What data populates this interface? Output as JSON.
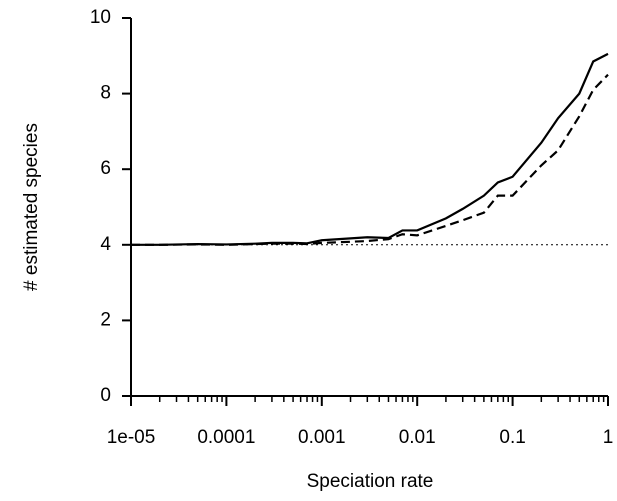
{
  "chart_data": {
    "type": "line",
    "x_label": "Speciation rate",
    "y_label": "# estimated species",
    "x_scale": "log",
    "x": [
      1e-05,
      2e-05,
      5e-05,
      0.0001,
      0.0002,
      0.0003,
      0.0005,
      0.0007,
      0.001,
      0.002,
      0.003,
      0.005,
      0.007,
      0.01,
      0.02,
      0.03,
      0.05,
      0.07,
      0.1,
      0.2,
      0.3,
      0.5,
      0.7,
      1
    ],
    "series": [
      {
        "color": "#000000",
        "dash": "solid",
        "values": [
          4.0,
          4.0,
          4.02,
          4.01,
          4.03,
          4.05,
          4.05,
          4.04,
          4.12,
          4.17,
          4.2,
          4.18,
          4.38,
          4.38,
          4.7,
          4.95,
          5.3,
          5.65,
          5.8,
          6.7,
          7.35,
          8.0,
          8.85,
          9.05
        ]
      },
      {
        "color": "#000000",
        "dash": "dashed",
        "values": [
          4.0,
          4.0,
          4.01,
          4.0,
          4.02,
          4.03,
          4.03,
          4.02,
          4.05,
          4.08,
          4.1,
          4.15,
          4.28,
          4.25,
          4.5,
          4.65,
          4.85,
          5.3,
          5.3,
          6.1,
          6.5,
          7.4,
          8.1,
          8.5
        ]
      }
    ],
    "reference_line": {
      "value": 4,
      "color": "#000000",
      "dash": "dotted"
    },
    "xlim": [
      1e-05,
      1
    ],
    "xticks": [
      {
        "value": 1e-05,
        "label": "1e-05"
      },
      0.0001,
      0.001,
      0.01,
      0.1,
      1
    ],
    "xminorticks": [
      2e-05,
      3e-05,
      4e-05,
      5e-05,
      6e-05,
      7e-05,
      8e-05,
      9e-05,
      0.0002,
      0.0003,
      0.0004,
      0.0005,
      0.0006,
      0.0007,
      0.0008,
      0.0009,
      0.002,
      0.003,
      0.004,
      0.005,
      0.006,
      0.007,
      0.008,
      0.009,
      0.02,
      0.03,
      0.04,
      0.05,
      0.06,
      0.07,
      0.08,
      0.09,
      0.2,
      0.3,
      0.4,
      0.5,
      0.6,
      0.7,
      0.8,
      0.9
    ],
    "ylim": [
      0,
      10
    ],
    "yticks": [
      0,
      2,
      4,
      6,
      8,
      10
    ]
  }
}
